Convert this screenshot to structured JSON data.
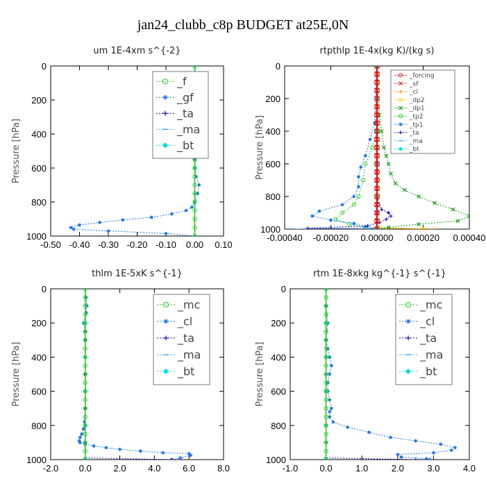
{
  "page_title": "jan24_clubb_c8p  BUDGET at25E,0N",
  "colors": {
    "green": "#22cc22",
    "red": "#dd1111",
    "orange": "#ff9900",
    "yellow": "#ffcc00",
    "blue": "#1a73e8",
    "navy": "#1111aa",
    "lightblue": "#44aaff",
    "cyan": "#00dddd",
    "darkgreen": "#119911"
  },
  "chart_data": [
    {
      "type": "line",
      "title": "um   1E-4xm s^{-2}",
      "ylabel": "Pressure [hPa]",
      "xlim": [
        -0.5,
        0.1
      ],
      "ylim": [
        1000,
        0
      ],
      "xticks": [
        "-0.50",
        "-0.40",
        "-0.30",
        "-0.20",
        "-0.10",
        "0.00",
        "0.10"
      ],
      "xtick_values": [
        -0.5,
        -0.4,
        -0.3,
        -0.2,
        -0.1,
        0.0,
        0.1
      ],
      "yticks": [
        "0",
        "200",
        "400",
        "600",
        "800",
        "1000"
      ],
      "ytick_values": [
        0,
        200,
        400,
        600,
        800,
        1000
      ],
      "legend": {
        "position": "top-right",
        "font": 16
      },
      "series": [
        {
          "name": "_f",
          "color": "green",
          "marker": "circle",
          "x": [
            0.0,
            0.0,
            0.0,
            0.0,
            0.0,
            0.0,
            0.0,
            0.0,
            0.0,
            0.0,
            0.0,
            0.0,
            0.0,
            0.0,
            0.0,
            0.0,
            0.0,
            0.0,
            0.0,
            0.0,
            0.0
          ],
          "y": [
            0,
            50,
            100,
            150,
            200,
            250,
            300,
            350,
            400,
            450,
            500,
            550,
            600,
            650,
            700,
            750,
            800,
            850,
            900,
            950,
            1000
          ]
        },
        {
          "name": "_gf",
          "color": "blue",
          "marker": "star",
          "x": [
            0.0,
            0.005,
            0.01,
            0.015,
            0.02,
            0.005,
            0.0,
            0.0,
            0.0,
            0.0,
            0.0,
            0.0,
            0.0,
            0.005,
            0.015,
            0.01,
            0.0,
            -0.01,
            -0.03,
            -0.08,
            -0.15,
            -0.25,
            -0.33,
            -0.4,
            -0.43,
            -0.42,
            -0.3,
            -0.1,
            0.0
          ],
          "y": [
            0,
            50,
            100,
            130,
            160,
            190,
            250,
            300,
            350,
            400,
            450,
            500,
            550,
            650,
            700,
            750,
            800,
            830,
            850,
            870,
            890,
            905,
            920,
            935,
            950,
            960,
            970,
            985,
            1000
          ]
        },
        {
          "name": "_ta",
          "color": "navy",
          "marker": "plus",
          "x": [
            0.0,
            0.0,
            0.0,
            0.0,
            0.0
          ],
          "y": [
            0,
            250,
            500,
            750,
            1000
          ]
        },
        {
          "name": "_ma",
          "color": "lightblue",
          "marker": "dash",
          "x": [
            0.0,
            0.0,
            0.0,
            0.0,
            0.0
          ],
          "y": [
            0,
            250,
            500,
            750,
            1000
          ]
        },
        {
          "name": "_bt",
          "color": "cyan",
          "marker": "diamond",
          "x": [
            0.0,
            0.0,
            0.0,
            0.0,
            0.0,
            0.0
          ],
          "y": [
            0,
            200,
            400,
            600,
            800,
            1000
          ]
        }
      ]
    },
    {
      "type": "line",
      "title": "rtpthlp   1E-4x(kg K)/(kg s)",
      "ylabel": "Pressure [hPa]",
      "xlim": [
        -0.0004,
        0.0004
      ],
      "ylim": [
        1000,
        0
      ],
      "xticks": [
        "-0.00040",
        "-0.00020",
        "0.00000",
        "0.00020",
        "0.00040"
      ],
      "xtick_values": [
        -0.0004,
        -0.0002,
        0.0,
        0.0002,
        0.0004
      ],
      "yticks": [
        "0",
        "200",
        "400",
        "600",
        "800",
        "1000"
      ],
      "ytick_values": [
        0,
        200,
        400,
        600,
        800,
        1000
      ],
      "legend": {
        "position": "top-right",
        "font": 9
      },
      "series": [
        {
          "name": "_forcing",
          "color": "red",
          "marker": "circle",
          "x": [
            0.0,
            0.0,
            0.0,
            0.0,
            0.0,
            0.0,
            0.0,
            0.0,
            0.0,
            0.0,
            0.0,
            0.0,
            0.0,
            0.0,
            0.0,
            0.0,
            0.0,
            0.0,
            0.0,
            0.0,
            0.0
          ],
          "y": [
            0,
            50,
            100,
            150,
            200,
            250,
            300,
            350,
            400,
            450,
            500,
            550,
            600,
            650,
            700,
            750,
            800,
            850,
            900,
            950,
            1000
          ]
        },
        {
          "name": "_sf",
          "color": "red",
          "marker": "x",
          "x": [
            0.0,
            0.0,
            0.0,
            0.0,
            0.0,
            0.0,
            0.0,
            0.0,
            0.0,
            0.0,
            0.0,
            0.0,
            0.0,
            0.0,
            0.0,
            0.0,
            0.0,
            0.0,
            0.0,
            0.0,
            0.0
          ],
          "y": [
            0,
            50,
            100,
            150,
            200,
            250,
            300,
            350,
            400,
            450,
            500,
            550,
            600,
            650,
            700,
            750,
            800,
            850,
            900,
            950,
            1000
          ]
        },
        {
          "name": "_cl",
          "color": "orange",
          "marker": "plus",
          "x": [
            0.0,
            0.0,
            0.0,
            0.0,
            5e-05,
            0.0002,
            0.00025
          ],
          "y": [
            0,
            400,
            800,
            980,
            995,
            997,
            1000
          ]
        },
        {
          "name": "_dp2",
          "color": "yellow",
          "marker": "circle",
          "x": [
            0.0,
            0.0,
            0.0,
            0.0,
            0.0002
          ],
          "y": [
            0,
            400,
            800,
            990,
            1000
          ]
        },
        {
          "name": "_dp1",
          "color": "darkgreen",
          "marker": "x",
          "x": [
            0.0,
            1e-05,
            2e-05,
            3e-05,
            4e-05,
            5e-05,
            6e-05,
            8e-05,
            0.00012,
            0.00018,
            0.00025,
            0.00033,
            0.0004,
            0.00035,
            0.00018,
            5e-05,
            0.0
          ],
          "y": [
            0,
            300,
            400,
            500,
            550,
            600,
            660,
            720,
            760,
            800,
            840,
            880,
            920,
            950,
            970,
            990,
            1000
          ]
        },
        {
          "name": "_tp2",
          "color": "green",
          "marker": "circle",
          "x": [
            0.0,
            0.0,
            -2e-05,
            -5e-05,
            -6e-05,
            -8e-05,
            -0.0001,
            -0.00015,
            -0.00018,
            -0.00012,
            -5e-05,
            0.0
          ],
          "y": [
            0,
            400,
            500,
            600,
            700,
            800,
            850,
            900,
            940,
            970,
            990,
            1000
          ]
        },
        {
          "name": "_tp1",
          "color": "blue",
          "marker": "star",
          "x": [
            0.0,
            -1e-05,
            -3e-05,
            -5e-05,
            -7e-05,
            -8e-05,
            -8e-05,
            -0.0001,
            -0.00015,
            -0.00025,
            -0.00028,
            -0.0002,
            -0.0001,
            -5e-05,
            0.0
          ],
          "y": [
            0,
            350,
            450,
            550,
            620,
            680,
            740,
            800,
            850,
            890,
            920,
            945,
            965,
            985,
            1000
          ]
        },
        {
          "name": "_ta",
          "color": "navy",
          "marker": "plus",
          "x": [
            0.0,
            0.0,
            2e-05,
            5e-05,
            6e-05,
            4e-05,
            1e-05,
            -4e-05,
            -0.0003,
            0.0
          ],
          "y": [
            0,
            800,
            880,
            900,
            920,
            940,
            960,
            980,
            995,
            1000
          ]
        },
        {
          "name": "_ma",
          "color": "lightblue",
          "marker": "dash",
          "x": [
            0.0,
            0.0,
            0.0,
            -0.00035
          ],
          "y": [
            0,
            900,
            990,
            1000
          ]
        },
        {
          "name": "_bt",
          "color": "cyan",
          "marker": "diamond",
          "x": [
            0.0,
            0.0,
            0.0,
            0.0,
            0.0,
            0.0
          ],
          "y": [
            0,
            200,
            400,
            600,
            800,
            1000
          ]
        }
      ]
    },
    {
      "type": "line",
      "title": "thlm   1E-5xK s^{-1}",
      "ylabel": "Pressure [hPa]",
      "xlim": [
        -2.0,
        8.0
      ],
      "ylim": [
        1000,
        0
      ],
      "xticks": [
        "-2.0",
        "0.0",
        "2.0",
        "4.0",
        "6.0",
        "8.0"
      ],
      "xtick_values": [
        -2.0,
        0.0,
        2.0,
        4.0,
        6.0,
        8.0
      ],
      "yticks": [
        "0",
        "200",
        "400",
        "600",
        "800",
        "1000"
      ],
      "ytick_values": [
        0,
        200,
        400,
        600,
        800,
        1000
      ],
      "legend": {
        "position": "top-right",
        "font": 16
      },
      "series": [
        {
          "name": "_mc",
          "color": "green",
          "marker": "circle",
          "x": [
            0.0,
            0.0,
            0.0,
            0.0,
            0.0,
            0.0,
            0.0,
            0.0,
            0.0,
            0.0,
            0.0,
            0.0,
            0.0,
            0.0,
            0.0,
            0.0,
            0.0,
            0.0,
            0.0,
            0.0,
            0.0
          ],
          "y": [
            0,
            50,
            100,
            150,
            200,
            250,
            300,
            350,
            400,
            450,
            500,
            550,
            600,
            650,
            700,
            750,
            800,
            850,
            900,
            950,
            1000
          ]
        },
        {
          "name": "_cl",
          "color": "blue",
          "marker": "star",
          "x": [
            0.0,
            0.05,
            0.1,
            0.05,
            -0.1,
            0.0,
            0.0,
            0.0,
            0.0,
            0.0,
            0.0,
            -0.05,
            -0.1,
            -0.2,
            -0.3,
            -0.35,
            -0.3,
            0.0,
            0.5,
            1.2,
            2.0,
            3.2,
            4.5,
            6.0,
            6.1,
            5.5,
            5.0
          ],
          "y": [
            0,
            50,
            100,
            140,
            200,
            250,
            300,
            400,
            500,
            600,
            700,
            780,
            820,
            850,
            870,
            890,
            900,
            910,
            920,
            930,
            940,
            950,
            960,
            965,
            975,
            990,
            1000
          ]
        },
        {
          "name": "_ta",
          "color": "navy",
          "marker": "plus",
          "x": [
            0.0,
            0.0,
            0.0,
            0.0,
            5.0
          ],
          "y": [
            0,
            500,
            900,
            990,
            1000
          ]
        },
        {
          "name": "_ma",
          "color": "lightblue",
          "marker": "dash",
          "x": [
            0.0,
            0.0,
            0.0,
            0.0
          ],
          "y": [
            0,
            400,
            800,
            1000
          ]
        },
        {
          "name": "_bt",
          "color": "cyan",
          "marker": "diamond",
          "x": [
            0.0,
            0.0,
            0.0,
            0.0,
            0.0,
            0.0
          ],
          "y": [
            0,
            200,
            400,
            600,
            800,
            1000
          ]
        }
      ]
    },
    {
      "type": "line",
      "title": "rtm   1E-8xkg kg^{-1} s^{-1}",
      "ylabel": "Pressure [hPa]",
      "xlim": [
        -1.0,
        4.0
      ],
      "ylim": [
        1000,
        0
      ],
      "xticks": [
        "-1.0",
        "0.0",
        "1.0",
        "2.0",
        "3.0",
        "4.0"
      ],
      "xtick_values": [
        -1.0,
        0.0,
        1.0,
        2.0,
        3.0,
        4.0
      ],
      "yticks": [
        "0",
        "200",
        "400",
        "600",
        "800",
        "1000"
      ],
      "ytick_values": [
        0,
        200,
        400,
        600,
        800,
        1000
      ],
      "legend": {
        "position": "top-right",
        "font": 16
      },
      "series": [
        {
          "name": "_mc",
          "color": "green",
          "marker": "circle",
          "x": [
            0.0,
            0.0,
            0.0,
            0.0,
            0.0,
            0.0,
            0.0,
            0.0,
            0.0,
            0.0,
            0.0,
            0.0,
            0.0,
            0.0,
            0.0,
            0.0,
            0.0,
            0.0,
            0.0,
            0.0,
            0.0
          ],
          "y": [
            0,
            50,
            100,
            150,
            200,
            250,
            300,
            350,
            400,
            450,
            500,
            550,
            600,
            650,
            700,
            750,
            800,
            850,
            900,
            950,
            1000
          ]
        },
        {
          "name": "_cl",
          "color": "blue",
          "marker": "star",
          "x": [
            0.0,
            0.0,
            0.05,
            0.0,
            0.05,
            0.1,
            0.15,
            0.1,
            0.05,
            0.05,
            0.1,
            0.15,
            0.1,
            0.1,
            0.2,
            0.6,
            1.2,
            1.8,
            2.5,
            3.2,
            3.6,
            3.5,
            3.0,
            2.0,
            2.1,
            2.8,
            2.9
          ],
          "y": [
            0,
            100,
            200,
            300,
            350,
            400,
            450,
            500,
            550,
            600,
            650,
            700,
            720,
            750,
            780,
            810,
            840,
            870,
            890,
            910,
            930,
            945,
            960,
            970,
            985,
            995,
            1000
          ]
        },
        {
          "name": "_ta",
          "color": "navy",
          "marker": "plus",
          "x": [
            0.0,
            0.0,
            0.0,
            0.0,
            2.5
          ],
          "y": [
            0,
            500,
            900,
            990,
            1000
          ]
        },
        {
          "name": "_ma",
          "color": "lightblue",
          "marker": "dash",
          "x": [
            0.0,
            0.0,
            0.0,
            0.0
          ],
          "y": [
            0,
            400,
            800,
            1000
          ]
        },
        {
          "name": "_bt",
          "color": "cyan",
          "marker": "diamond",
          "x": [
            0.0,
            0.0,
            0.0,
            0.0,
            0.0,
            0.0
          ],
          "y": [
            0,
            200,
            400,
            600,
            800,
            1000
          ]
        }
      ]
    }
  ]
}
